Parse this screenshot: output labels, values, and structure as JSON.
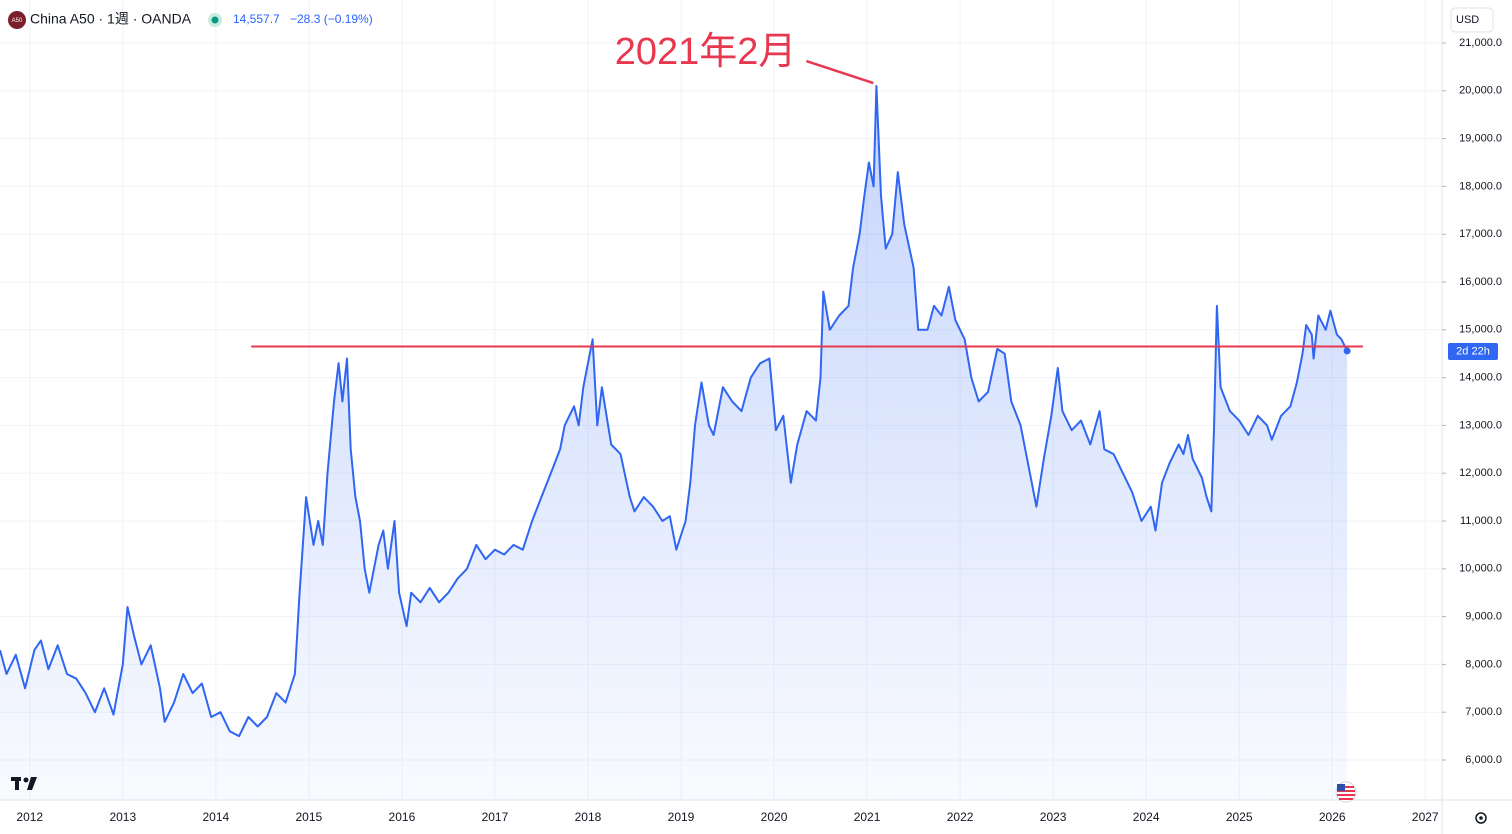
{
  "header": {
    "logo": "A50",
    "symbol": "China A50 · 1週 · OANDA",
    "price": "14,557.7",
    "change": "−28.3 (−0.19%)",
    "currency": "USD",
    "countdown": "2d 22h"
  },
  "chart_data": {
    "type": "area",
    "color": "#2f66f2",
    "grid": true,
    "xlim": [
      2011.68,
      2027.18
    ],
    "ylim": [
      5163,
      21900
    ],
    "xticks": [
      2012,
      2013,
      2014,
      2015,
      2016,
      2017,
      2018,
      2019,
      2020,
      2021,
      2022,
      2023,
      2024,
      2025,
      2026,
      2027
    ],
    "yticks": [
      {
        "value": 6000,
        "label": "6,000.0"
      },
      {
        "value": 7000,
        "label": "7,000.0"
      },
      {
        "value": 8000,
        "label": "8,000.0"
      },
      {
        "value": 9000,
        "label": "9,000.0"
      },
      {
        "value": 10000,
        "label": "10,000.0"
      },
      {
        "value": 11000,
        "label": "11,000.0"
      },
      {
        "value": 12000,
        "label": "12,000.0"
      },
      {
        "value": 13000,
        "label": "13,000.0"
      },
      {
        "value": 14000,
        "label": "14,000.0"
      },
      {
        "value": 15000,
        "label": "15,000.0"
      },
      {
        "value": 16000,
        "label": "16,000.0"
      },
      {
        "value": 17000,
        "label": "17,000.0"
      },
      {
        "value": 18000,
        "label": "18,000.0"
      },
      {
        "value": 19000,
        "label": "19,000.0"
      },
      {
        "value": 20000,
        "label": "20,000.0"
      },
      {
        "value": 21000,
        "label": "21,000.0"
      }
    ],
    "x": [
      2011.68,
      2011.75,
      2011.85,
      2011.95,
      2012.05,
      2012.12,
      2012.2,
      2012.3,
      2012.4,
      2012.5,
      2012.6,
      2012.7,
      2012.8,
      2012.9,
      2013.0,
      2013.05,
      2013.12,
      2013.2,
      2013.3,
      2013.4,
      2013.45,
      2013.55,
      2013.65,
      2013.75,
      2013.85,
      2013.95,
      2014.05,
      2014.15,
      2014.25,
      2014.35,
      2014.45,
      2014.55,
      2014.65,
      2014.75,
      2014.85,
      2014.9,
      2014.97,
      2015.05,
      2015.1,
      2015.15,
      2015.2,
      2015.27,
      2015.32,
      2015.36,
      2015.41,
      2015.45,
      2015.5,
      2015.55,
      2015.6,
      2015.65,
      2015.75,
      2015.8,
      2015.85,
      2015.92,
      2015.97,
      2016.05,
      2016.1,
      2016.2,
      2016.3,
      2016.4,
      2016.5,
      2016.6,
      2016.7,
      2016.8,
      2016.9,
      2017.0,
      2017.1,
      2017.2,
      2017.3,
      2017.4,
      2017.5,
      2017.6,
      2017.7,
      2017.75,
      2017.85,
      2017.9,
      2017.95,
      2018.05,
      2018.1,
      2018.15,
      2018.25,
      2018.35,
      2018.45,
      2018.5,
      2018.6,
      2018.7,
      2018.8,
      2018.88,
      2018.95,
      2019.05,
      2019.1,
      2019.15,
      2019.22,
      2019.3,
      2019.35,
      2019.45,
      2019.55,
      2019.65,
      2019.75,
      2019.85,
      2019.95,
      2020.02,
      2020.1,
      2020.18,
      2020.25,
      2020.35,
      2020.45,
      2020.5,
      2020.53,
      2020.6,
      2020.7,
      2020.8,
      2020.85,
      2020.92,
      2020.97,
      2021.02,
      2021.07,
      2021.1,
      2021.15,
      2021.2,
      2021.27,
      2021.33,
      2021.4,
      2021.5,
      2021.55,
      2021.65,
      2021.72,
      2021.8,
      2021.88,
      2021.95,
      2022.05,
      2022.12,
      2022.2,
      2022.3,
      2022.4,
      2022.48,
      2022.55,
      2022.65,
      2022.75,
      2022.82,
      2022.9,
      2022.98,
      2023.05,
      2023.1,
      2023.2,
      2023.3,
      2023.4,
      2023.5,
      2023.55,
      2023.65,
      2023.75,
      2023.85,
      2023.95,
      2024.05,
      2024.1,
      2024.17,
      2024.25,
      2024.35,
      2024.4,
      2024.45,
      2024.5,
      2024.6,
      2024.65,
      2024.7,
      2024.73,
      2024.76,
      2024.8,
      2024.9,
      2025.0,
      2025.1,
      2025.2,
      2025.3,
      2025.35,
      2025.45,
      2025.55,
      2025.62,
      2025.68,
      2025.72,
      2025.78,
      2025.8,
      2025.85,
      2025.93,
      2025.98,
      2026.05,
      2026.1,
      2026.16
    ],
    "values": [
      8300,
      7800,
      8200,
      7500,
      8300,
      8500,
      7900,
      8400,
      7800,
      7700,
      7400,
      7000,
      7500,
      6950,
      8000,
      9200,
      8600,
      8000,
      8400,
      7500,
      6800,
      7200,
      7800,
      7400,
      7600,
      6900,
      7000,
      6600,
      6500,
      6900,
      6700,
      6900,
      7400,
      7200,
      7800,
      9500,
      11500,
      10500,
      11000,
      10500,
      12000,
      13500,
      14300,
      13500,
      14400,
      12500,
      11500,
      11000,
      10000,
      9500,
      10500,
      10800,
      10000,
      11000,
      9500,
      8800,
      9500,
      9300,
      9600,
      9300,
      9500,
      9800,
      10000,
      10500,
      10200,
      10400,
      10300,
      10500,
      10400,
      11000,
      11500,
      12000,
      12500,
      13000,
      13400,
      13000,
      13800,
      14800,
      13000,
      13800,
      12600,
      12400,
      11500,
      11200,
      11500,
      11300,
      11000,
      11100,
      10400,
      11000,
      11800,
      13000,
      13900,
      13000,
      12800,
      13800,
      13500,
      13300,
      14000,
      14300,
      14400,
      12900,
      13200,
      11800,
      12600,
      13300,
      13100,
      14000,
      15800,
      15000,
      15300,
      15500,
      16300,
      17000,
      17800,
      18500,
      18000,
      20100,
      17800,
      16700,
      17000,
      18300,
      17200,
      16300,
      15000,
      15000,
      15500,
      15300,
      15900,
      15200,
      14800,
      14000,
      13500,
      13700,
      14600,
      14500,
      13500,
      13000,
      12000,
      11300,
      12300,
      13200,
      14200,
      13300,
      12900,
      13100,
      12600,
      13300,
      12500,
      12400,
      12000,
      11600,
      11000,
      11300,
      10800,
      11800,
      12200,
      12600,
      12400,
      12800,
      12300,
      11900,
      11500,
      11200,
      13000,
      15500,
      13800,
      13300,
      13100,
      12800,
      13200,
      13000,
      12700,
      13200,
      13400,
      13900,
      14500,
      15100,
      14900,
      14400,
      15300,
      15000,
      15400,
      14900,
      14800,
      14557.7
    ],
    "hline": {
      "value": 14650,
      "x": [
        2014.38,
        2026.33
      ],
      "color": "#e8384f"
    },
    "annotation": {
      "text": "2021年2月",
      "x": 2021.1,
      "y": 20100
    }
  }
}
